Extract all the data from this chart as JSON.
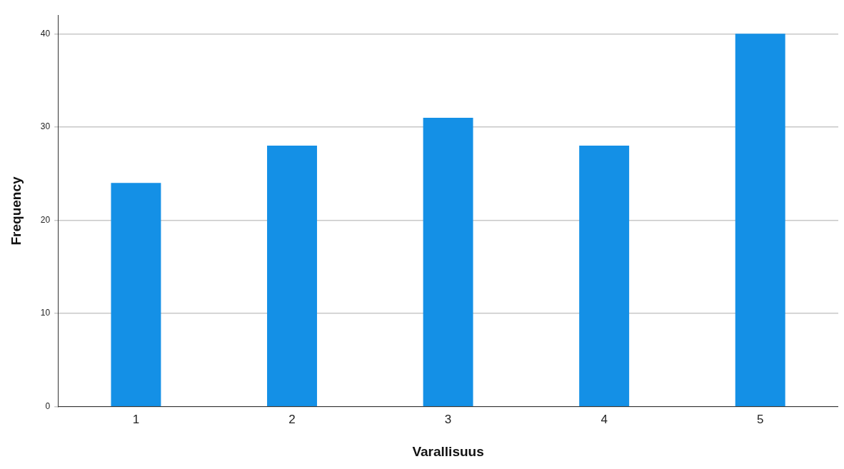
{
  "chart_data": {
    "type": "bar",
    "xlabel": "Varallisuus",
    "ylabel": "Frequency",
    "categories": [
      "1",
      "2",
      "3",
      "4",
      "5"
    ],
    "values": [
      24,
      28,
      31,
      28,
      40
    ],
    "color": "#1490e6",
    "ylim": [
      0,
      42
    ],
    "yticks": [
      0,
      10,
      20,
      30,
      40
    ],
    "grid": "y"
  }
}
